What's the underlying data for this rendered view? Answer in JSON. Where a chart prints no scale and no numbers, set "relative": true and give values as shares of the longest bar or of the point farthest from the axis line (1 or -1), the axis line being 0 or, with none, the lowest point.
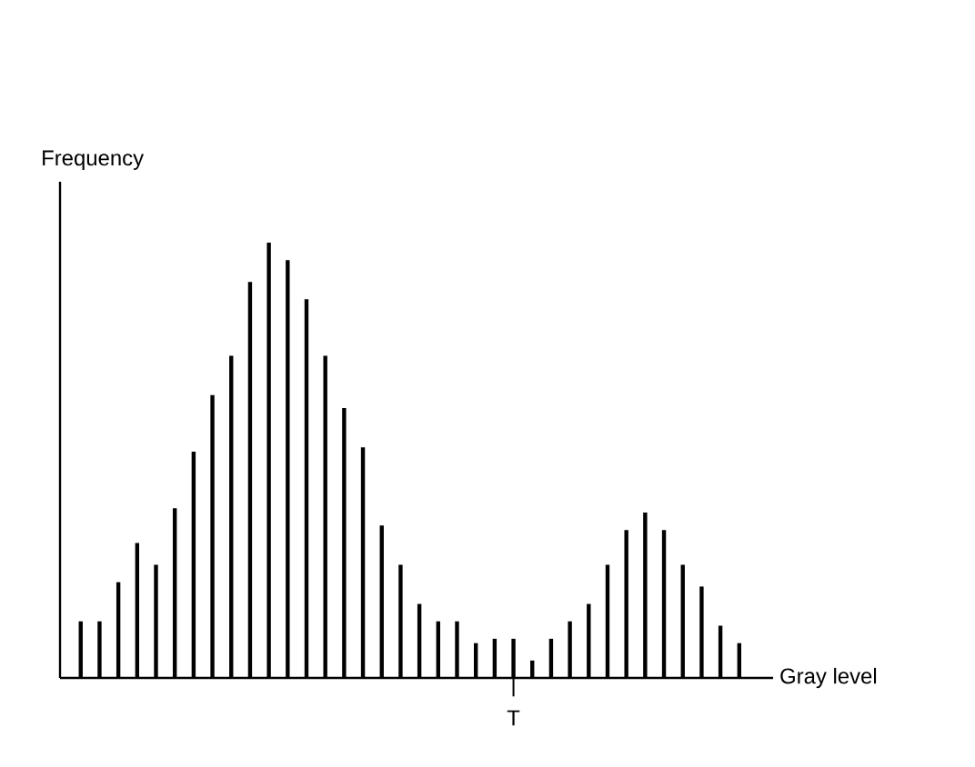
{
  "chart_data": {
    "type": "bar",
    "relative": true,
    "xlabel": "Gray level",
    "ylabel": "Frequency",
    "categories": [
      null,
      null,
      null,
      null,
      null,
      null,
      null,
      null,
      null,
      null,
      null,
      null,
      null,
      null,
      null,
      null,
      null,
      null,
      null,
      null,
      null,
      null,
      null,
      null,
      null,
      null,
      null,
      null,
      null,
      null,
      null,
      null,
      null,
      null,
      null,
      null
    ],
    "values": [
      0.13,
      0.13,
      0.22,
      0.31,
      0.26,
      0.39,
      0.52,
      0.65,
      0.74,
      0.91,
      1,
      0.96,
      0.87,
      0.74,
      0.62,
      0.53,
      0.35,
      0.26,
      0.17,
      0.13,
      0.13,
      0.08,
      0.09,
      0.09,
      0.04,
      0.09,
      0.13,
      0.17,
      0.26,
      0.34,
      0.38,
      0.34,
      0.26,
      0.21,
      0.12,
      0.08
    ],
    "color": "#000000",
    "annotations": [
      "T"
    ]
  }
}
